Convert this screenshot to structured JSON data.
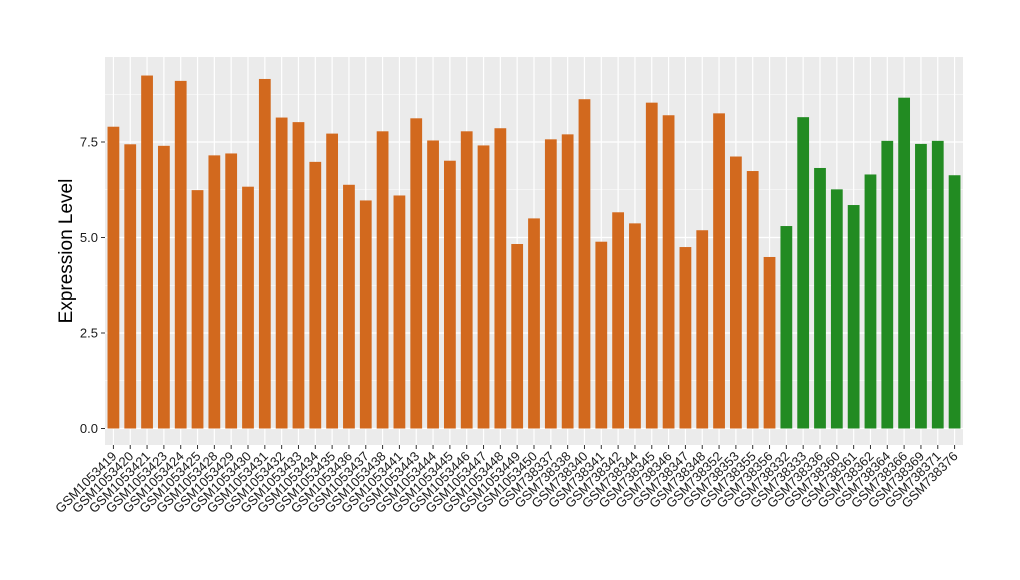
{
  "chart_data": {
    "type": "bar",
    "title": "",
    "xlabel": "",
    "ylabel": "Expression Level",
    "ylim": [
      0,
      9.7
    ],
    "yticks": [
      "0.0",
      "2.5",
      "5.0",
      "7.5"
    ],
    "ytick_values": [
      0,
      2.5,
      5.0,
      7.5
    ],
    "grid": true,
    "legend": "none",
    "colors": {
      "group_a": "#D2691E",
      "group_b": "#228B22",
      "panel": "#EBEBEB",
      "grid": "#FFFFFF"
    },
    "categories": [
      "GSM1053419",
      "GSM1053420",
      "GSM1053421",
      "GSM1053423",
      "GSM1053424",
      "GSM1053425",
      "GSM1053428",
      "GSM1053429",
      "GSM1053430",
      "GSM1053431",
      "GSM1053432",
      "GSM1053433",
      "GSM1053434",
      "GSM1053435",
      "GSM1053436",
      "GSM1053437",
      "GSM1053438",
      "GSM1053441",
      "GSM1053443",
      "GSM1053444",
      "GSM1053445",
      "GSM1053446",
      "GSM1053447",
      "GSM1053448",
      "GSM1053449",
      "GSM1053450",
      "GSM738337",
      "GSM738338",
      "GSM738340",
      "GSM738341",
      "GSM738342",
      "GSM738344",
      "GSM738345",
      "GSM738346",
      "GSM738347",
      "GSM738348",
      "GSM738352",
      "GSM738353",
      "GSM738355",
      "GSM738356",
      "GSM738332",
      "GSM738333",
      "GSM738336",
      "GSM738360",
      "GSM738361",
      "GSM738362",
      "GSM738364",
      "GSM738366",
      "GSM738369",
      "GSM738371",
      "GSM738376"
    ],
    "values": [
      7.9,
      7.44,
      9.24,
      7.4,
      9.1,
      6.24,
      7.15,
      7.2,
      6.33,
      9.15,
      8.14,
      8.02,
      6.98,
      7.72,
      6.38,
      5.97,
      7.78,
      6.1,
      8.12,
      7.54,
      7.01,
      7.78,
      7.41,
      7.86,
      4.83,
      5.5,
      7.57,
      7.7,
      8.62,
      4.89,
      5.66,
      5.37,
      8.53,
      8.2,
      4.75,
      5.19,
      8.25,
      7.12,
      6.74,
      4.49,
      5.3,
      8.15,
      6.82,
      6.26,
      5.85,
      6.65,
      7.53,
      8.66,
      7.45,
      7.53,
      6.63
    ],
    "groups": [
      "a",
      "a",
      "a",
      "a",
      "a",
      "a",
      "a",
      "a",
      "a",
      "a",
      "a",
      "a",
      "a",
      "a",
      "a",
      "a",
      "a",
      "a",
      "a",
      "a",
      "a",
      "a",
      "a",
      "a",
      "a",
      "a",
      "a",
      "a",
      "a",
      "a",
      "a",
      "a",
      "a",
      "a",
      "a",
      "a",
      "a",
      "a",
      "a",
      "a",
      "b",
      "b",
      "b",
      "b",
      "b",
      "b",
      "b",
      "b",
      "b",
      "b",
      "b"
    ]
  }
}
